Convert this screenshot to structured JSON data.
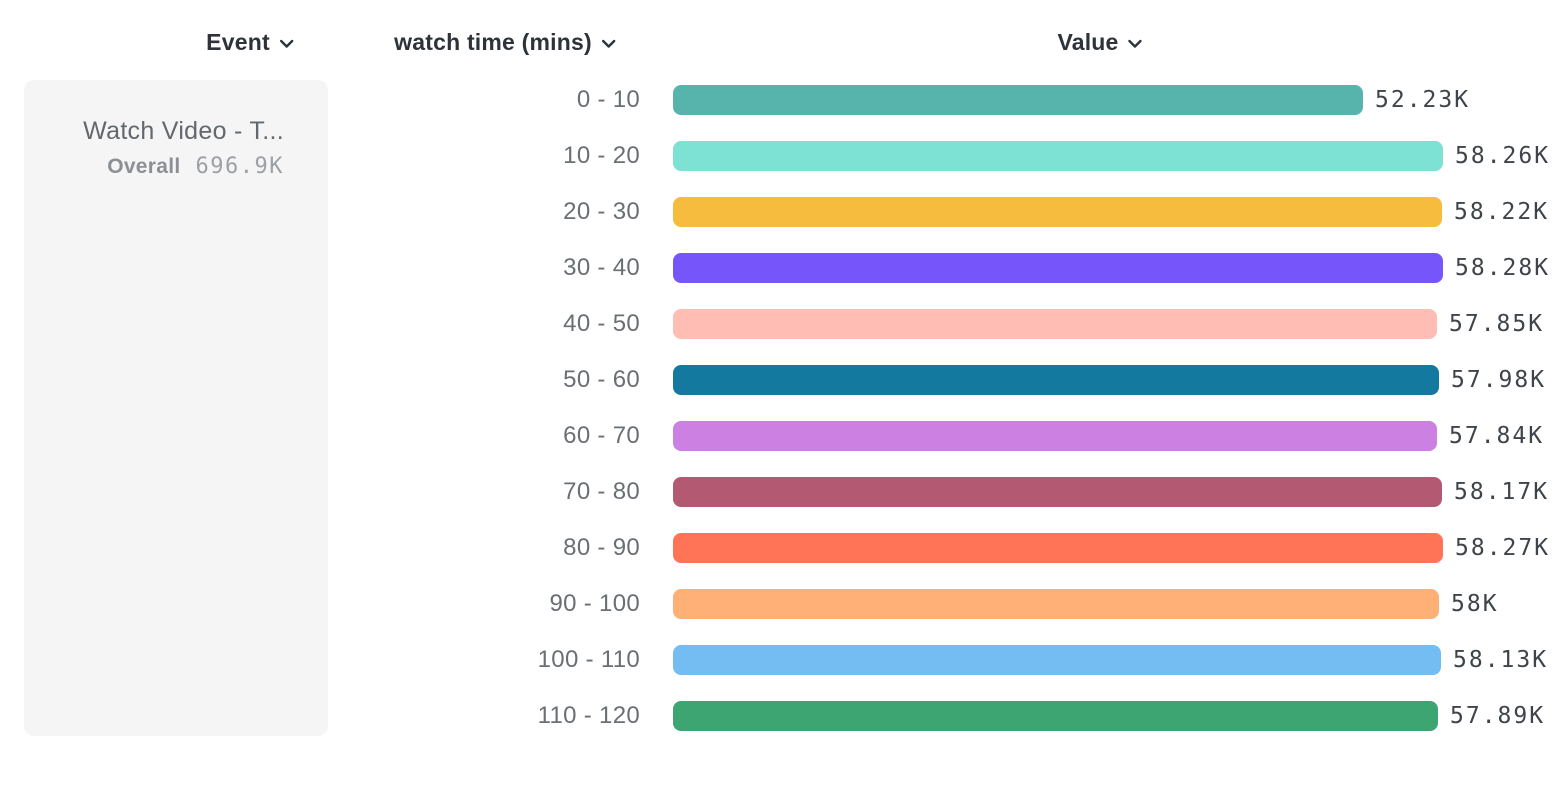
{
  "header": {
    "event": {
      "label": "Event"
    },
    "breakdown": {
      "label": "watch time (mins)"
    },
    "value": {
      "label": "Value"
    }
  },
  "event_card": {
    "title": "Watch Video - T...",
    "overall_label": "Overall",
    "overall_value": "696.9K"
  },
  "icons": {
    "chevron_down": "chevron-down"
  },
  "chart_data": {
    "type": "bar",
    "orientation": "horizontal",
    "title": "",
    "xlabel": "Value",
    "ylabel": "watch time (mins)",
    "xlim": [
      0,
      58280
    ],
    "grid": false,
    "legend": "none",
    "categories": [
      "0 - 10",
      "10 - 20",
      "20 - 30",
      "30 - 40",
      "40 - 50",
      "50 - 60",
      "60 - 70",
      "70 - 80",
      "80 - 90",
      "90 - 100",
      "100 - 110",
      "110 - 120"
    ],
    "values": [
      52230,
      58260,
      58220,
      58280,
      57850,
      57980,
      57840,
      58170,
      58270,
      58000,
      58130,
      57890
    ],
    "value_labels": [
      "52.23K",
      "58.26K",
      "58.22K",
      "58.28K",
      "57.85K",
      "57.98K",
      "57.84K",
      "58.17K",
      "58.27K",
      "58K",
      "58.13K",
      "57.89K"
    ],
    "colors": [
      "#57B4AC",
      "#7DE1D4",
      "#F6BC3D",
      "#7656FA",
      "#FFBDB3",
      "#14799F",
      "#CB80E2",
      "#B35A72",
      "#FF7357",
      "#FFB077",
      "#74BDF3",
      "#3CA571"
    ]
  }
}
